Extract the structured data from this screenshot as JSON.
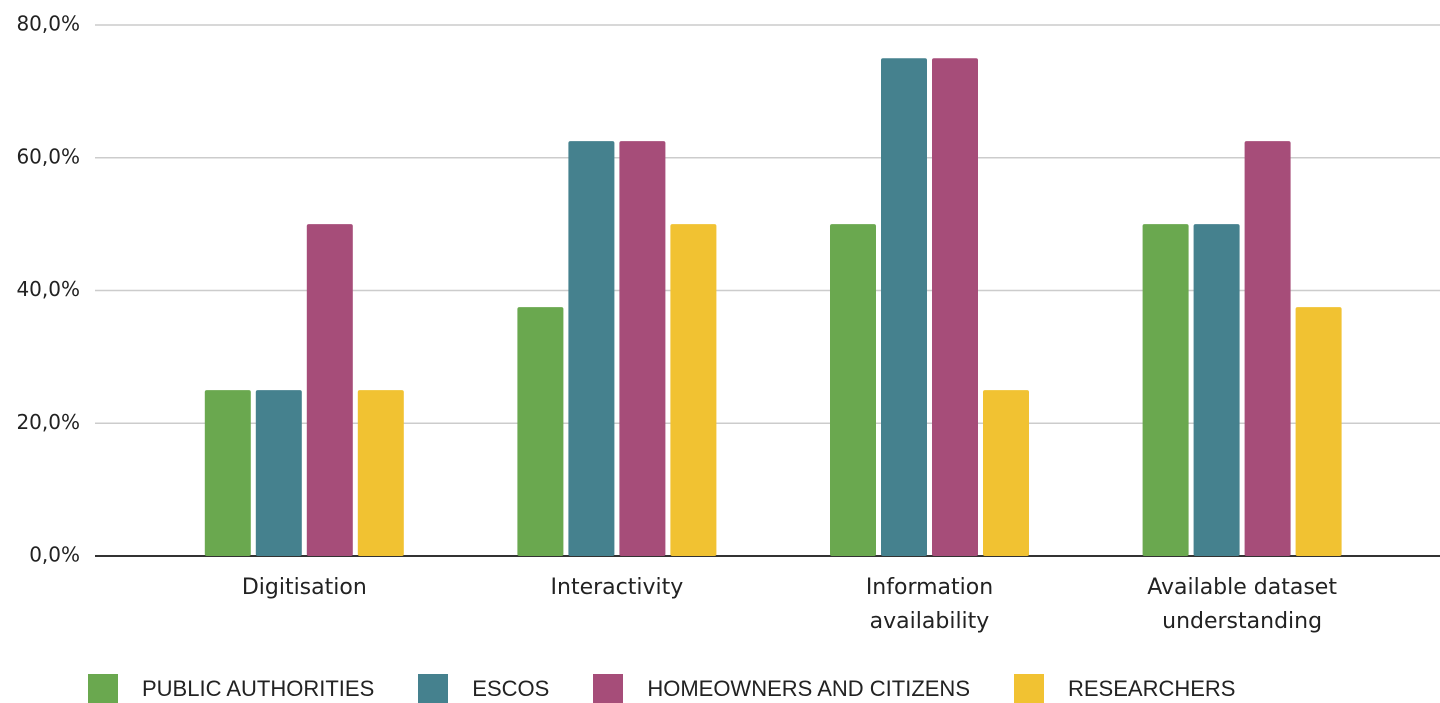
{
  "chart_data": {
    "type": "bar",
    "categories": [
      "Digitisation",
      "Interactivity",
      "Information availability",
      "Available dataset understanding"
    ],
    "series": [
      {
        "name": "PUBLIC AUTHORITIES",
        "color": "#6aa84f",
        "values": [
          25,
          37.5,
          50,
          50
        ]
      },
      {
        "name": "ESCOS",
        "color": "#45818e",
        "values": [
          25,
          62.5,
          75,
          50
        ]
      },
      {
        "name": "HOMEOWNERS AND CITIZENS",
        "color": "#a64d79",
        "values": [
          50,
          62.5,
          75,
          62.5
        ]
      },
      {
        "name": "RESEARCHERS",
        "color": "#f1c232",
        "values": [
          25,
          50,
          25,
          37.5
        ]
      }
    ],
    "ylim": [
      0,
      80
    ],
    "yticks": [
      {
        "value": 0,
        "label": "0,0%"
      },
      {
        "value": 20,
        "label": "20,0%"
      },
      {
        "value": 40,
        "label": "40,0%"
      },
      {
        "value": 60,
        "label": "60,0%"
      },
      {
        "value": 80,
        "label": "80,0%"
      }
    ],
    "grid": true,
    "legend": "bottom"
  }
}
